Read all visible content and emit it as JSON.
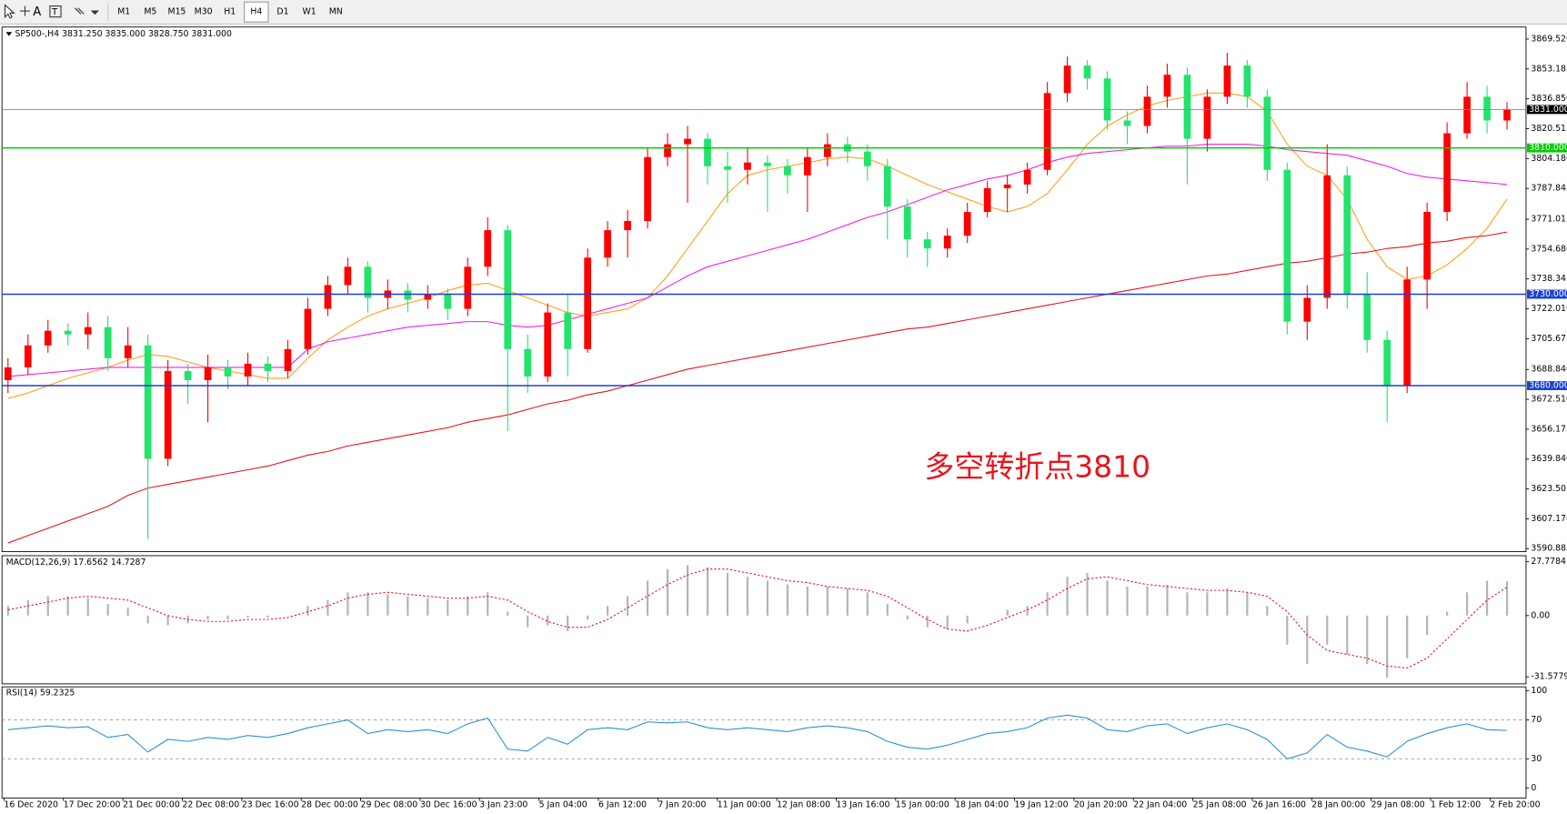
{
  "toolbar": {
    "text_tool": "A",
    "timeframes": [
      "M1",
      "M5",
      "M15",
      "M30",
      "H1",
      "H4",
      "D1",
      "W1",
      "MN"
    ],
    "active": "H4"
  },
  "chart_data": [
    {
      "type": "candlestick",
      "title": "SP500-,H4",
      "subtitle": "3831.250 3835.000 3828.750 3831.000",
      "annotation": "多空转折点3810",
      "annotation_color": "#e8141c",
      "up_color": "#ff0000",
      "down_color": "#22e36b",
      "ylim": [
        3589.2,
        3876.1
      ],
      "yticks": [
        {
          "value": 3869.52,
          "label": "3869.520"
        },
        3853.185,
        {
          "value": 3836.85,
          "label": "3836.850"
        },
        3820.515,
        {
          "value": 3804.18,
          "label": "3804.180"
        },
        3787.845,
        3771.015,
        {
          "value": 3754.68,
          "label": "3754.680"
        },
        3738.345,
        {
          "value": 3722.01,
          "label": "3722.010"
        },
        3705.675,
        {
          "value": 3688.84,
          "label": "3688.840"
        },
        {
          "value": 3672.51,
          "label": "3672.510"
        },
        3656.175,
        {
          "value": 3639.84,
          "label": "3639.840"
        },
        3623.505,
        {
          "value": 3607.17,
          "label": "3607.170"
        },
        3590.885
      ],
      "levels": [
        {
          "value": 3831,
          "label": "3831.000",
          "color": "#6c8ebf",
          "label_bg": "#000000"
        },
        {
          "value": 3810,
          "label": "3810.000",
          "color": "#00cc00",
          "label_bg": "#00cc00"
        },
        {
          "value": 3730,
          "label": "3730.000",
          "color": "#1a3fd6",
          "label_bg": "#1a3fd6"
        },
        {
          "value": 3680,
          "label": "3680.000",
          "color": "#1a3fd6",
          "label_bg": "#1a3fd6"
        }
      ],
      "open": [
        3683,
        3690,
        3702,
        3710,
        3708,
        3712,
        3695,
        3702,
        3640,
        3688,
        3683,
        3690,
        3685,
        3692,
        3688,
        3700,
        3722,
        3735,
        3745,
        3728,
        3732,
        3727,
        3730,
        3722,
        3745,
        3765,
        3700,
        3685,
        3720,
        3700,
        3750,
        3765,
        3770,
        3805,
        3812,
        3815,
        3800,
        3798,
        3802,
        3800,
        3795,
        3805,
        3812,
        3808,
        3800,
        3778,
        3760,
        3755,
        3762,
        3775,
        3788,
        3790,
        3798,
        3840,
        3855,
        3848,
        3825,
        3822,
        3838,
        3850,
        3815,
        3838,
        3855,
        3838,
        3798,
        3715,
        3728,
        3795,
        3730,
        3705,
        3680,
        3738,
        3775,
        3818,
        3838,
        3825
      ],
      "high": [
        3695,
        3708,
        3716,
        3714,
        3720,
        3718,
        3712,
        3708,
        3694,
        3692,
        3697,
        3694,
        3698,
        3696,
        3705,
        3728,
        3740,
        3750,
        3748,
        3738,
        3736,
        3735,
        3733,
        3750,
        3772,
        3768,
        3708,
        3725,
        3730,
        3755,
        3770,
        3776,
        3810,
        3818,
        3822,
        3818,
        3808,
        3810,
        3806,
        3804,
        3810,
        3818,
        3816,
        3812,
        3804,
        3782,
        3764,
        3766,
        3780,
        3792,
        3795,
        3802,
        3846,
        3860,
        3858,
        3852,
        3830,
        3844,
        3856,
        3854,
        3842,
        3862,
        3858,
        3842,
        3802,
        3735,
        3812,
        3800,
        3742,
        3710,
        3745,
        3780,
        3824,
        3846,
        3844,
        3835
      ],
      "low": [
        3676,
        3686,
        3698,
        3702,
        3700,
        3688,
        3690,
        3596,
        3636,
        3670,
        3660,
        3678,
        3680,
        3682,
        3684,
        3697,
        3718,
        3730,
        3720,
        3722,
        3720,
        3722,
        3716,
        3718,
        3740,
        3655,
        3676,
        3682,
        3685,
        3698,
        3745,
        3750,
        3766,
        3800,
        3780,
        3790,
        3780,
        3790,
        3775,
        3785,
        3775,
        3800,
        3802,
        3792,
        3760,
        3750,
        3745,
        3750,
        3758,
        3772,
        3775,
        3785,
        3795,
        3835,
        3842,
        3820,
        3812,
        3818,
        3832,
        3790,
        3808,
        3834,
        3832,
        3792,
        3708,
        3705,
        3722,
        3722,
        3698,
        3660,
        3676,
        3722,
        3770,
        3815,
        3818,
        3820
      ],
      "close": [
        3690,
        3702,
        3710,
        3708,
        3712,
        3695,
        3702,
        3640,
        3688,
        3683,
        3690,
        3685,
        3692,
        3688,
        3700,
        3722,
        3735,
        3745,
        3728,
        3732,
        3727,
        3730,
        3722,
        3745,
        3765,
        3700,
        3685,
        3720,
        3700,
        3750,
        3765,
        3770,
        3805,
        3812,
        3815,
        3800,
        3798,
        3802,
        3800,
        3795,
        3805,
        3812,
        3808,
        3800,
        3778,
        3760,
        3755,
        3762,
        3775,
        3788,
        3790,
        3798,
        3840,
        3855,
        3848,
        3825,
        3822,
        3838,
        3850,
        3815,
        3838,
        3855,
        3838,
        3798,
        3715,
        3728,
        3795,
        3730,
        3705,
        3680,
        3738,
        3775,
        3818,
        3838,
        3825,
        3831
      ],
      "overlays": [
        {
          "color": "#ffa020",
          "values": [
            3673,
            3676,
            3680,
            3684,
            3687,
            3690,
            3694,
            3697,
            3696,
            3693,
            3690,
            3688,
            3686,
            3684,
            3684,
            3695,
            3705,
            3712,
            3718,
            3722,
            3725,
            3728,
            3732,
            3735,
            3736,
            3732,
            3728,
            3724,
            3720,
            3718,
            3720,
            3722,
            3728,
            3740,
            3755,
            3770,
            3785,
            3795,
            3798,
            3800,
            3802,
            3804,
            3805,
            3804,
            3800,
            3795,
            3790,
            3786,
            3782,
            3778,
            3775,
            3778,
            3785,
            3798,
            3812,
            3822,
            3828,
            3833,
            3836,
            3838,
            3840,
            3840,
            3838,
            3830,
            3812,
            3800,
            3795,
            3782,
            3760,
            3745,
            3738,
            3740,
            3746,
            3755,
            3766,
            3782
          ]
        },
        {
          "color": "#ee22ee",
          "values": [
            3685,
            3686,
            3687,
            3688,
            3689,
            3690,
            3690,
            3690,
            3690,
            3690,
            3690,
            3690,
            3690,
            3690,
            3690,
            3700,
            3704,
            3706,
            3708,
            3710,
            3712,
            3713,
            3714,
            3715,
            3715,
            3713,
            3712,
            3713,
            3716,
            3719,
            3722,
            3725,
            3728,
            3734,
            3740,
            3745,
            3748,
            3751,
            3754,
            3757,
            3760,
            3764,
            3768,
            3772,
            3775,
            3779,
            3783,
            3787,
            3790,
            3793,
            3795,
            3798,
            3802,
            3805,
            3807,
            3808,
            3809,
            3810,
            3811,
            3811,
            3812,
            3812,
            3812,
            3811,
            3809,
            3808,
            3807,
            3806,
            3803,
            3800,
            3796,
            3794,
            3793,
            3792,
            3791,
            3790
          ]
        },
        {
          "color": "#e8141c",
          "values": [
            3594,
            3598,
            3602,
            3606,
            3610,
            3614,
            3620,
            3624,
            3626,
            3628,
            3630,
            3632,
            3634,
            3636,
            3639,
            3642,
            3644,
            3647,
            3649,
            3651,
            3653,
            3655,
            3657,
            3660,
            3662,
            3664,
            3667,
            3670,
            3672,
            3675,
            3677,
            3680,
            3683,
            3686,
            3689,
            3691,
            3693,
            3695,
            3697,
            3699,
            3701,
            3703,
            3705,
            3707,
            3709,
            3711,
            3712,
            3714,
            3716,
            3718,
            3720,
            3722,
            3724,
            3726,
            3728,
            3730,
            3732,
            3734,
            3736,
            3738,
            3740,
            3741,
            3743,
            3745,
            3747,
            3748,
            3750,
            3752,
            3753,
            3755,
            3756,
            3758,
            3759,
            3761,
            3762,
            3764
          ]
        }
      ],
      "x_labels": [
        "16 Dec 2020",
        "17 Dec 20:00",
        "21 Dec 00:00",
        "22 Dec 08:00",
        "23 Dec 16:00",
        "28 Dec 00:00",
        "29 Dec 08:00",
        "30 Dec 16:00",
        "3 Jan 23:00",
        "5 Jan 04:00",
        "6 Jan 12:00",
        "7 Jan 20:00",
        "11 Jan 00:00",
        "12 Jan 08:00",
        "13 Jan 16:00",
        "15 Jan 00:00",
        "18 Jan 04:00",
        "19 Jan 12:00",
        "20 Jan 20:00",
        "22 Jan 04:00",
        "25 Jan 08:00",
        "26 Jan 16:00",
        "28 Jan 00:00",
        "29 Jan 08:00",
        "1 Feb 12:00",
        "2 Feb 20:00"
      ]
    },
    {
      "type": "macd",
      "title": "MACD(12,26,9) 17.6562 14.7287",
      "ylim": [
        -35.2,
        30.9
      ],
      "yticks": [
        27.7784,
        {
          "value": 0,
          "label": "0.00"
        },
        -31.5779
      ],
      "histogram": {
        "color": "#b4b4b4",
        "values": [
          5,
          8,
          10,
          10,
          9,
          6,
          4,
          -4,
          -5,
          -4,
          -2,
          -2,
          -1,
          -1,
          0,
          5,
          8,
          12,
          12,
          11,
          10,
          9,
          8,
          10,
          12,
          2,
          -6,
          -5,
          -8,
          -2,
          5,
          10,
          18,
          24,
          26,
          25,
          22,
          20,
          18,
          16,
          15,
          15,
          14,
          12,
          6,
          -2,
          -6,
          -7,
          -4,
          0,
          3,
          5,
          12,
          20,
          22,
          18,
          15,
          15,
          16,
          12,
          12,
          14,
          12,
          5,
          -15,
          -25,
          -15,
          -20,
          -25,
          -32,
          -22,
          -10,
          2,
          12,
          18,
          17.66
        ]
      },
      "signal": {
        "color": "#e8141c",
        "values": [
          3,
          5,
          7,
          9,
          10,
          9,
          8,
          4,
          0,
          -2,
          -3,
          -3,
          -2,
          -2,
          -1,
          2,
          5,
          9,
          11,
          12,
          11,
          10,
          9,
          9,
          10,
          8,
          2,
          -3,
          -6,
          -6,
          -2,
          4,
          10,
          16,
          21,
          24,
          24,
          22,
          20,
          18,
          17,
          15,
          14,
          13,
          10,
          4,
          -2,
          -7,
          -8,
          -5,
          -1,
          3,
          8,
          14,
          19,
          20,
          18,
          16,
          15,
          14,
          13,
          13,
          12,
          10,
          2,
          -10,
          -18,
          -20,
          -22,
          -26,
          -27,
          -22,
          -12,
          -2,
          8,
          14.73
        ]
      }
    },
    {
      "type": "line",
      "title": "RSI(14) 59.2325",
      "color": "#2d8fd8",
      "ylim": [
        -10.3,
        104.1
      ],
      "yticks": [
        100,
        70,
        30,
        0
      ],
      "levels": [
        70,
        30
      ],
      "values": [
        60,
        62,
        64,
        62,
        63,
        52,
        55,
        37,
        50,
        48,
        52,
        50,
        54,
        52,
        56,
        62,
        66,
        70,
        56,
        60,
        58,
        60,
        56,
        66,
        72,
        40,
        38,
        52,
        45,
        60,
        62,
        60,
        68,
        67,
        68,
        62,
        60,
        62,
        60,
        58,
        62,
        64,
        62,
        58,
        48,
        42,
        40,
        44,
        50,
        56,
        58,
        62,
        72,
        75,
        72,
        60,
        58,
        64,
        66,
        56,
        62,
        66,
        60,
        50,
        30,
        36,
        55,
        42,
        38,
        32,
        48,
        56,
        62,
        66,
        60,
        59.23
      ]
    }
  ]
}
